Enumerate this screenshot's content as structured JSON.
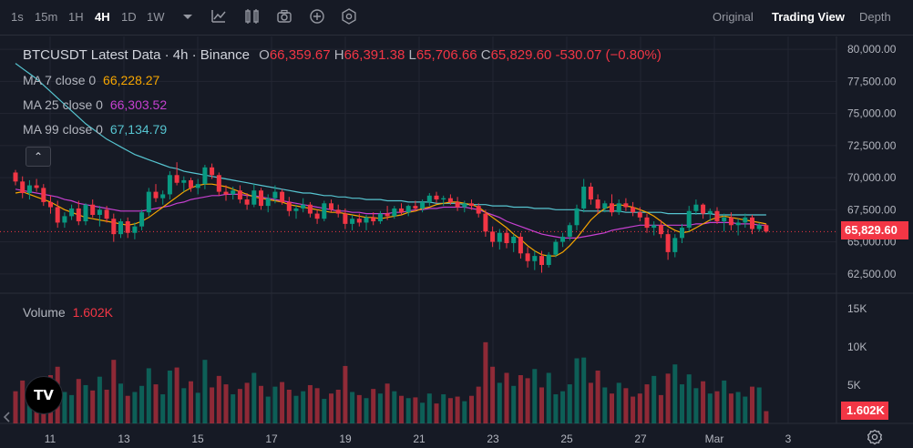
{
  "toolbar": {
    "timeframes": [
      "1s",
      "15m",
      "1H",
      "4H",
      "1D",
      "1W"
    ],
    "active_timeframe": "4H",
    "tool_icons": [
      "dropdown-icon",
      "indicators-icon",
      "templates-icon",
      "screenshot-icon",
      "add-icon",
      "settings-icon"
    ],
    "views": [
      "Original",
      "Trading View",
      "Depth"
    ],
    "active_view": "Trading View"
  },
  "legend": {
    "title": "BTCUSDT Latest Data · 4h · Binance",
    "o_label": "O",
    "o_value": "66,359.67",
    "h_label": "H",
    "h_value": "66,391.38",
    "l_label": "L",
    "l_value": "65,706.66",
    "c_label": "C",
    "c_value": "65,829.60",
    "change": "-530.07 (−0.80%)",
    "ma7_label": "MA 7 close 0",
    "ma7_value": "66,228.27",
    "ma25_label": "MA 25 close 0",
    "ma25_value": "66,303.52",
    "ma99_label": "MA 99 close 0",
    "ma99_value": "67,134.79",
    "collapse_symbol": "⌃"
  },
  "volume_legend": {
    "label": "Volume",
    "value": "1.602K"
  },
  "price_tag": "65,829.60",
  "volume_tag": "1.602K",
  "logo_text": "TV",
  "colors": {
    "up": "#089981",
    "down": "#f23645",
    "ma7": "#f7a600",
    "ma25": "#c640d0",
    "ma99": "#56c4d0",
    "bg": "#161a25"
  },
  "chart_data": {
    "type": "candlestick",
    "price_axis": [
      "80,000.00",
      "77,500.00",
      "75,000.00",
      "72,500.00",
      "70,000.00",
      "67,500.00",
      "65,000.00",
      "62,500.00"
    ],
    "price_axis_values": [
      80000,
      77500,
      75000,
      72500,
      70000,
      67500,
      65000,
      62500
    ],
    "volume_axis": [
      "15K",
      "10K",
      "5K"
    ],
    "volume_axis_values": [
      15000,
      10000,
      5000
    ],
    "x_axis": [
      "11",
      "13",
      "15",
      "17",
      "19",
      "21",
      "23",
      "25",
      "27",
      "Mar",
      "3"
    ],
    "ylim": [
      61000,
      81000
    ],
    "vlim": [
      0,
      17000
    ],
    "candles": [
      [
        70400,
        70600,
        69400,
        69700
      ],
      [
        69700,
        70100,
        68400,
        68800
      ],
      [
        68800,
        69800,
        68300,
        69400
      ],
      [
        69400,
        69900,
        68900,
        69200
      ],
      [
        69200,
        69500,
        67800,
        68100
      ],
      [
        68100,
        68600,
        67200,
        67700
      ],
      [
        67700,
        68200,
        66100,
        66500
      ],
      [
        66500,
        67300,
        66100,
        67000
      ],
      [
        67000,
        67900,
        66700,
        67600
      ],
      [
        67600,
        68200,
        66300,
        66600
      ],
      [
        66600,
        68000,
        66300,
        67900
      ],
      [
        67900,
        68300,
        66900,
        67100
      ],
      [
        67100,
        67800,
        66200,
        67500
      ],
      [
        67500,
        67800,
        66500,
        66800
      ],
      [
        66800,
        67200,
        65000,
        65600
      ],
      [
        65600,
        66800,
        65300,
        66600
      ],
      [
        66600,
        66900,
        65300,
        65700
      ],
      [
        65700,
        66500,
        65200,
        66200
      ],
      [
        66200,
        67500,
        65900,
        67300
      ],
      [
        67300,
        69200,
        67000,
        68900
      ],
      [
        68900,
        69500,
        68100,
        68400
      ],
      [
        68400,
        69000,
        67900,
        68700
      ],
      [
        68700,
        70500,
        68300,
        70200
      ],
      [
        70200,
        71200,
        69400,
        69600
      ],
      [
        69600,
        70100,
        68900,
        69800
      ],
      [
        69800,
        70000,
        68900,
        69200
      ],
      [
        69200,
        69900,
        68700,
        69500
      ],
      [
        69500,
        71000,
        69100,
        70800
      ],
      [
        70800,
        71100,
        69900,
        70200
      ],
      [
        70200,
        70400,
        68600,
        68900
      ],
      [
        68900,
        69400,
        68200,
        68700
      ],
      [
        68700,
        69300,
        68300,
        69000
      ],
      [
        69000,
        69400,
        68000,
        68300
      ],
      [
        68300,
        68800,
        67500,
        67900
      ],
      [
        67900,
        69500,
        67700,
        69000
      ],
      [
        69000,
        69200,
        67500,
        67800
      ],
      [
        67800,
        68700,
        67300,
        68400
      ],
      [
        68400,
        69400,
        68000,
        68900
      ],
      [
        68900,
        69100,
        67900,
        68100
      ],
      [
        68100,
        68500,
        67000,
        67400
      ],
      [
        67400,
        67900,
        66800,
        67600
      ],
      [
        67600,
        68400,
        67300,
        67900
      ],
      [
        67900,
        68100,
        66900,
        67200
      ],
      [
        67200,
        67500,
        66400,
        66800
      ],
      [
        66800,
        68200,
        66600,
        68000
      ],
      [
        68000,
        68300,
        67300,
        67500
      ],
      [
        67500,
        67900,
        66900,
        67200
      ],
      [
        67200,
        67600,
        66000,
        66400
      ],
      [
        66400,
        67100,
        65900,
        66800
      ],
      [
        66800,
        67200,
        66200,
        66500
      ],
      [
        66500,
        67100,
        65900,
        66900
      ],
      [
        66900,
        67300,
        66300,
        66600
      ],
      [
        66600,
        67400,
        66400,
        67200
      ],
      [
        67200,
        67800,
        66700,
        67000
      ],
      [
        67000,
        67800,
        66800,
        67600
      ],
      [
        67600,
        68000,
        67100,
        67300
      ],
      [
        67300,
        67900,
        67000,
        67800
      ],
      [
        67800,
        68200,
        67400,
        67600
      ],
      [
        67600,
        68300,
        67300,
        68100
      ],
      [
        68100,
        68800,
        67800,
        68600
      ],
      [
        68600,
        68900,
        68000,
        68300
      ],
      [
        68300,
        68600,
        67800,
        68400
      ],
      [
        68400,
        68700,
        67900,
        68100
      ],
      [
        68100,
        68500,
        67400,
        67700
      ],
      [
        67700,
        68200,
        67300,
        68000
      ],
      [
        68000,
        68300,
        67500,
        67800
      ],
      [
        67800,
        68000,
        66900,
        67200
      ],
      [
        67200,
        67500,
        65400,
        65800
      ],
      [
        65800,
        66200,
        64600,
        65000
      ],
      [
        65000,
        66000,
        64400,
        65700
      ],
      [
        65700,
        66000,
        64500,
        64900
      ],
      [
        64900,
        65600,
        64200,
        65400
      ],
      [
        65400,
        65700,
        63700,
        64100
      ],
      [
        64100,
        64600,
        63000,
        63500
      ],
      [
        63500,
        64300,
        62800,
        63900
      ],
      [
        63900,
        64300,
        62600,
        63200
      ],
      [
        63200,
        64200,
        63000,
        64000
      ],
      [
        64000,
        65200,
        63800,
        65000
      ],
      [
        65000,
        65700,
        64600,
        65400
      ],
      [
        65400,
        66500,
        65100,
        66300
      ],
      [
        66300,
        67900,
        65900,
        67600
      ],
      [
        67600,
        69900,
        67300,
        69300
      ],
      [
        69300,
        69600,
        67900,
        68300
      ],
      [
        68300,
        68700,
        67200,
        67600
      ],
      [
        67600,
        68200,
        67300,
        68000
      ],
      [
        68000,
        68700,
        67000,
        67300
      ],
      [
        67300,
        68300,
        67100,
        68000
      ],
      [
        68000,
        68400,
        67400,
        67700
      ],
      [
        67700,
        68100,
        67000,
        67300
      ],
      [
        67300,
        67700,
        66600,
        66900
      ],
      [
        66900,
        67200,
        65700,
        66100
      ],
      [
        66100,
        66600,
        65500,
        66300
      ],
      [
        66300,
        66700,
        65300,
        65600
      ],
      [
        65600,
        66000,
        63600,
        64200
      ],
      [
        64200,
        65600,
        63800,
        65300
      ],
      [
        65300,
        66400,
        64900,
        66100
      ],
      [
        66100,
        67800,
        65800,
        67400
      ],
      [
        67400,
        68300,
        67100,
        67900
      ],
      [
        67900,
        68000,
        66800,
        67200
      ],
      [
        67200,
        67600,
        66600,
        67400
      ],
      [
        67400,
        67700,
        66400,
        66600
      ],
      [
        66600,
        67200,
        65800,
        66900
      ],
      [
        66900,
        67300,
        65900,
        66300
      ],
      [
        66300,
        66800,
        65500,
        66500
      ],
      [
        66500,
        67200,
        66100,
        66900
      ],
      [
        66900,
        67100,
        65600,
        66000
      ],
      [
        66000,
        66500,
        65800,
        66300
      ],
      [
        66300,
        66400,
        65700,
        65800
      ]
    ],
    "volumes": [
      4200,
      5600,
      3500,
      3900,
      4800,
      6300,
      7400,
      4100,
      3700,
      5800,
      5000,
      4300,
      6100,
      4400,
      8300,
      5200,
      3600,
      4100,
      4900,
      7200,
      5100,
      3800,
      6900,
      7300,
      4600,
      5500,
      4000,
      8300,
      4700,
      6200,
      5100,
      3800,
      4500,
      5300,
      6600,
      4900,
      3500,
      4800,
      5400,
      4400,
      3600,
      4200,
      5000,
      4600,
      3200,
      3900,
      4400,
      7500,
      4100,
      3700,
      3300,
      4500,
      3900,
      5200,
      4200,
      3600,
      3300,
      3400,
      2700,
      3900,
      2600,
      3800,
      3300,
      3500,
      2900,
      3600,
      4800,
      10600,
      7400,
      5300,
      6600,
      4900,
      6300,
      5900,
      7100,
      4700,
      6600,
      3800,
      4200,
      5100,
      8500,
      8600,
      5300,
      6900,
      4700,
      3900,
      5300,
      4600,
      3500,
      3900,
      5100,
      6200,
      3700,
      6500,
      7700,
      5100,
      6400,
      4600,
      5500,
      3900,
      4200,
      5600,
      3900,
      4100,
      3500,
      4800,
      4700,
      1602
    ],
    "ma7": [
      68800,
      68900,
      68700,
      68500,
      68300,
      68100,
      67800,
      67500,
      67300,
      67100,
      66900,
      66800,
      66700,
      66600,
      66500,
      66400,
      66300,
      66400,
      66600,
      66900,
      67300,
      67700,
      68100,
      68500,
      68900,
      69200,
      69400,
      69500,
      69500,
      69400,
      69300,
      69100,
      68900,
      68700,
      68500,
      68400,
      68300,
      68200,
      68100,
      67900,
      67800,
      67700,
      67600,
      67500,
      67400,
      67300,
      67300,
      67200,
      67100,
      67000,
      66900,
      66900,
      66800,
      66900,
      67000,
      67100,
      67300,
      67400,
      67600,
      67700,
      67900,
      68000,
      68100,
      68100,
      68000,
      67900,
      67700,
      67300,
      66900,
      66500,
      66100,
      65600,
      65200,
      64700,
      64300,
      64000,
      63900,
      63900,
      64200,
      64700,
      65300,
      66000,
      66700,
      67200,
      67600,
      67800,
      67900,
      67800,
      67700,
      67500,
      67300,
      67000,
      66600,
      66200,
      65900,
      65700,
      65800,
      66100,
      66400,
      66700,
      66900,
      67000,
      66900,
      66800,
      66700,
      66600,
      66500,
      66400
    ],
    "ma25": [
      69100,
      69000,
      68900,
      68800,
      68700,
      68600,
      68500,
      68300,
      68200,
      68000,
      67900,
      67800,
      67700,
      67600,
      67500,
      67400,
      67400,
      67400,
      67400,
      67500,
      67600,
      67700,
      67800,
      68000,
      68100,
      68300,
      68400,
      68500,
      68600,
      68600,
      68700,
      68700,
      68700,
      68600,
      68600,
      68500,
      68400,
      68300,
      68200,
      68100,
      68000,
      67900,
      67800,
      67700,
      67600,
      67500,
      67400,
      67400,
      67300,
      67300,
      67200,
      67200,
      67200,
      67200,
      67300,
      67300,
      67400,
      67500,
      67500,
      67600,
      67600,
      67700,
      67700,
      67700,
      67700,
      67600,
      67500,
      67300,
      67100,
      66900,
      66600,
      66400,
      66200,
      66000,
      65800,
      65600,
      65500,
      65400,
      65300,
      65300,
      65300,
      65400,
      65500,
      65600,
      65700,
      65900,
      66000,
      66100,
      66200,
      66300,
      66300,
      66300,
      66300,
      66300,
      66300,
      66300,
      66300,
      66400,
      66400,
      66500,
      66500,
      66500,
      66500,
      66400,
      66400,
      66400,
      66300,
      66300
    ],
    "ma99": [
      78900,
      78500,
      78100,
      77700,
      77200,
      76700,
      76200,
      75700,
      75200,
      74700,
      74200,
      73800,
      73400,
      73000,
      72700,
      72400,
      72100,
      71800,
      71600,
      71400,
      71200,
      71000,
      70800,
      70700,
      70500,
      70400,
      70300,
      70200,
      70100,
      70000,
      69900,
      69800,
      69700,
      69600,
      69500,
      69400,
      69300,
      69200,
      69100,
      69000,
      68900,
      68800,
      68800,
      68700,
      68600,
      68600,
      68500,
      68500,
      68400,
      68400,
      68300,
      68300,
      68300,
      68200,
      68200,
      68200,
      68100,
      68100,
      68100,
      68100,
      68000,
      68000,
      68000,
      68000,
      67900,
      67900,
      67900,
      67900,
      67800,
      67800,
      67800,
      67700,
      67700,
      67700,
      67600,
      67600,
      67600,
      67500,
      67500,
      67500,
      67500,
      67400,
      67400,
      67400,
      67400,
      67400,
      67400,
      67300,
      67300,
      67300,
      67300,
      67300,
      67300,
      67200,
      67200,
      67200,
      67200,
      67200,
      67200,
      67200,
      67100,
      67100,
      67100,
      67100,
      67100,
      67100,
      67100,
      67100
    ]
  }
}
